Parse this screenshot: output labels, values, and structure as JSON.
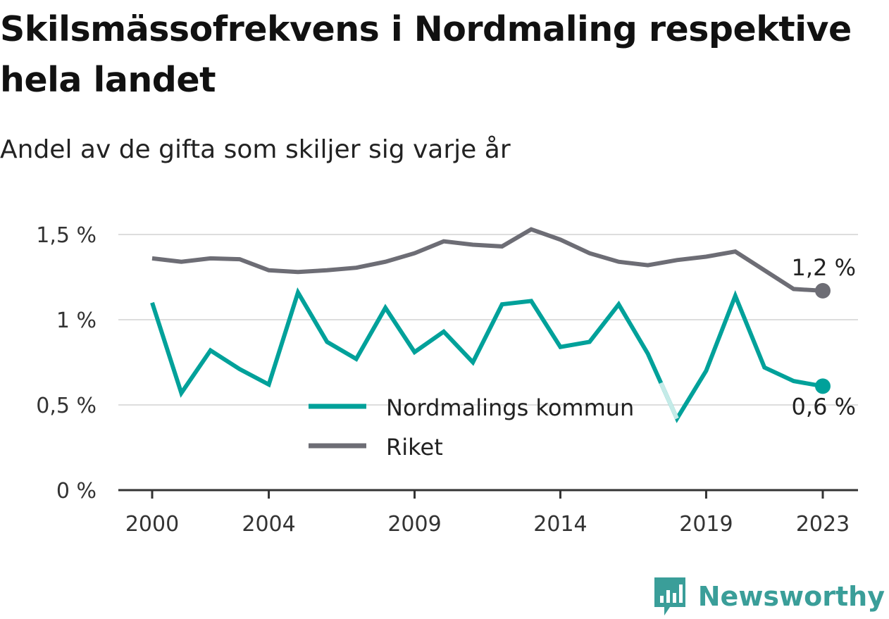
{
  "title": "Skilsmässofrekvens i Nordmaling respektive hela landet",
  "subtitle": "Andel av de gifta som skiljer sig varje år",
  "brand": "Newsworthy",
  "chart_data": {
    "type": "line",
    "x": [
      2000,
      2001,
      2002,
      2003,
      2004,
      2005,
      2006,
      2007,
      2008,
      2009,
      2010,
      2011,
      2012,
      2013,
      2014,
      2015,
      2016,
      2017,
      2018,
      2019,
      2020,
      2021,
      2022,
      2023
    ],
    "x_tick_labels": [
      "2000",
      "2004",
      "2009",
      "2014",
      "2019",
      "2023"
    ],
    "y_tick_labels": [
      "0 %",
      "0,5 %",
      "1 %",
      "1,5 %"
    ],
    "ylim": [
      0,
      1.5
    ],
    "grid": true,
    "legend_position": "center",
    "series": [
      {
        "name": "Nordmalings kommun",
        "color": "#00a19a",
        "values": [
          1.1,
          0.57,
          0.82,
          0.71,
          0.62,
          1.16,
          0.87,
          0.77,
          1.07,
          0.81,
          0.93,
          0.75,
          1.09,
          1.11,
          0.84,
          0.87,
          1.09,
          0.8,
          0.42,
          0.7,
          1.14,
          0.72,
          0.64,
          0.61
        ],
        "end_label": "0,6 %",
        "faded_segment_start_year": 2017
      },
      {
        "name": "Riket",
        "color": "#6d6d75",
        "values": [
          1.36,
          1.34,
          1.36,
          1.355,
          1.29,
          1.28,
          1.29,
          1.305,
          1.34,
          1.39,
          1.46,
          1.44,
          1.43,
          1.53,
          1.47,
          1.39,
          1.34,
          1.32,
          1.35,
          1.37,
          1.4,
          1.29,
          1.18,
          1.17
        ],
        "end_label": "1,2 %"
      }
    ]
  }
}
